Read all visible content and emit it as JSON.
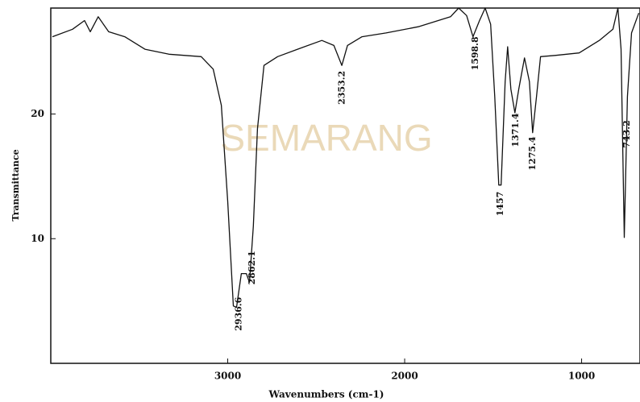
{
  "chart_data": {
    "type": "line",
    "watermark": "SEMARANG",
    "x_label": "Wavenumbers (cm-1)",
    "y_label": "Transmittance",
    "xlim": [
      4000,
      670
    ],
    "ylim": [
      0,
      28.5
    ],
    "xticks": [
      3000,
      2000,
      1000
    ],
    "yticks": [
      10,
      20
    ],
    "x": [
      3991,
      3877,
      3809,
      3777,
      3732,
      3673,
      3582,
      3468,
      3332,
      3150,
      3082,
      3036,
      3000,
      2968,
      2950,
      2923,
      2895,
      2877,
      2855,
      2832,
      2795,
      2718,
      2605,
      2468,
      2400,
      2355,
      2323,
      2241,
      2105,
      1923,
      1741,
      1695,
      1650,
      1614,
      1577,
      1545,
      1514,
      1491,
      1468,
      1455,
      1432,
      1418,
      1400,
      1377,
      1355,
      1323,
      1295,
      1277,
      1255,
      1232,
      1150,
      1014,
      900,
      823,
      795,
      777,
      759,
      741,
      718,
      677
    ],
    "series": [
      {
        "color": "#111111",
        "values": [
          26.2,
          26.8,
          27.5,
          26.6,
          27.8,
          26.6,
          26.2,
          25.2,
          24.8,
          24.6,
          23.6,
          20.7,
          13.0,
          4.6,
          4.5,
          7.2,
          7.2,
          6.5,
          11.0,
          18.8,
          23.9,
          24.6,
          25.2,
          25.9,
          25.5,
          23.9,
          25.5,
          26.2,
          26.5,
          27.0,
          27.8,
          28.5,
          27.9,
          26.2,
          27.5,
          28.5,
          27.2,
          21.4,
          14.3,
          14.3,
          22.6,
          25.4,
          22.0,
          20.1,
          22.0,
          24.5,
          22.6,
          18.5,
          21.4,
          24.6,
          24.7,
          24.9,
          25.9,
          26.8,
          28.5,
          25.2,
          10.1,
          21.4,
          26.5,
          28.1
        ]
      }
    ],
    "peak_labels": [
      2936.6,
      2862.1,
      2353.2,
      1598.8,
      1457,
      1371.4,
      1275.4,
      743.2
    ]
  }
}
